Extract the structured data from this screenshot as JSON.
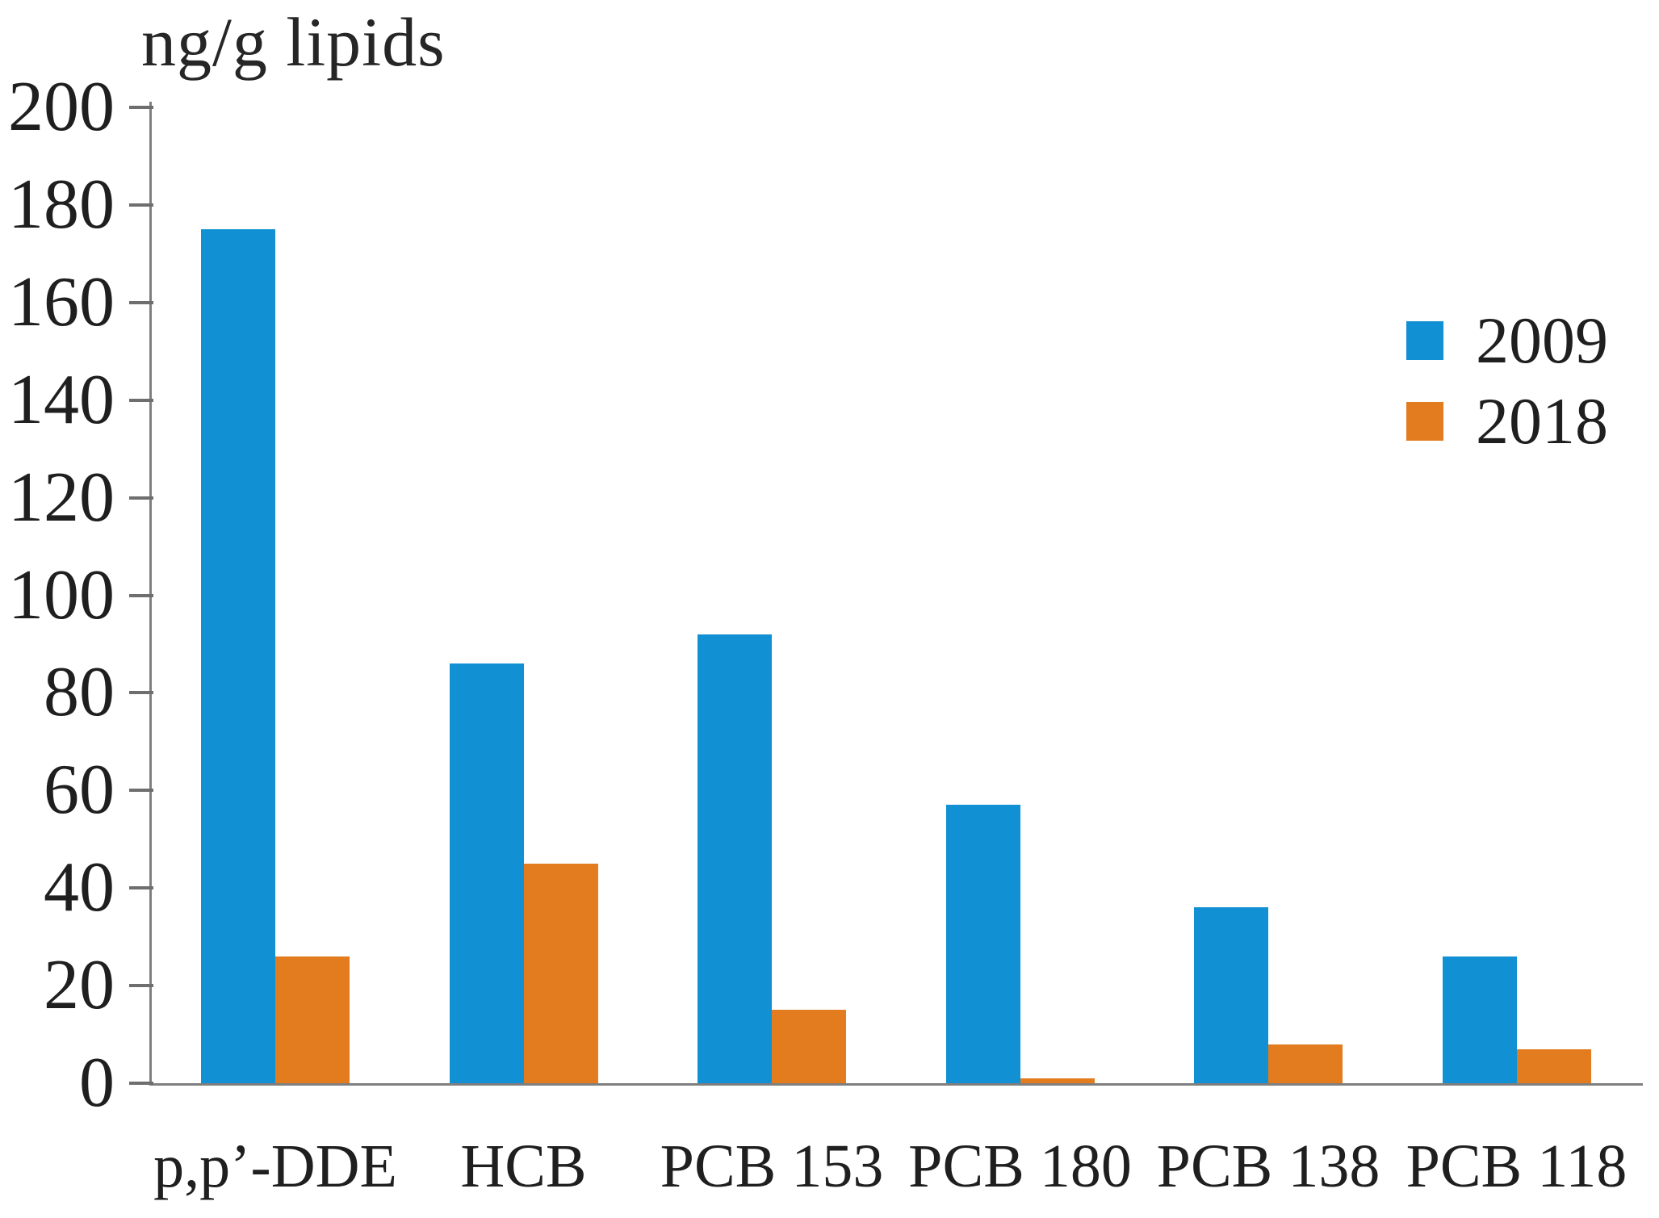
{
  "chart_data": {
    "type": "bar",
    "title": "ng/g lipids",
    "ylabel": "ng/g lipids",
    "categories": [
      "p,p’-DDE",
      "HCB",
      "PCB 153",
      "PCB 180",
      "PCB 138",
      "PCB 118"
    ],
    "series": [
      {
        "name": "2009",
        "color": "#1191d4",
        "values": [
          175,
          86,
          92,
          57,
          36,
          26
        ]
      },
      {
        "name": "2018",
        "color": "#e27c1e",
        "values": [
          26,
          45,
          15,
          1,
          8,
          7
        ]
      }
    ],
    "ylim": [
      0,
      200
    ],
    "yticks": [
      0,
      20,
      40,
      60,
      80,
      100,
      120,
      140,
      160,
      180,
      200
    ],
    "grid": false,
    "legend_position": "upper right"
  },
  "colors": {
    "axis_line": "#7f7f7f",
    "tick_mark": "#6e6e6e",
    "text": "#1f1f1f",
    "background": "#ffffff"
  }
}
